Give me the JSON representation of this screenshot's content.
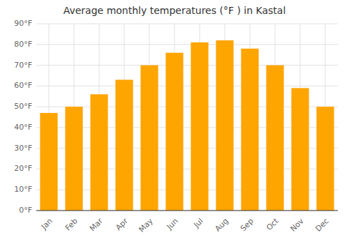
{
  "chart_data": {
    "type": "bar",
    "title": "Average monthly temperatures (°F ) in Kastal",
    "categories": [
      "Jan",
      "Feb",
      "Mar",
      "Apr",
      "May",
      "Jun",
      "Jul",
      "Aug",
      "Sep",
      "Oct",
      "Nov",
      "Dec"
    ],
    "values": [
      47,
      50,
      56,
      63,
      70,
      76,
      81,
      82,
      78,
      70,
      59,
      50
    ],
    "color": "#FFA500",
    "ylim": [
      0,
      90
    ],
    "yticks": [
      {
        "value": 0,
        "label": "0°F"
      },
      {
        "value": 10,
        "label": "10°F"
      },
      {
        "value": 20,
        "label": "20°F"
      },
      {
        "value": 30,
        "label": "30°F"
      },
      {
        "value": 40,
        "label": "40°F"
      },
      {
        "value": 50,
        "label": "50°F"
      },
      {
        "value": 60,
        "label": "60°F"
      },
      {
        "value": 70,
        "label": "70°F"
      },
      {
        "value": 80,
        "label": "80°F"
      },
      {
        "value": 90,
        "label": "90°F"
      }
    ],
    "grid": true
  }
}
